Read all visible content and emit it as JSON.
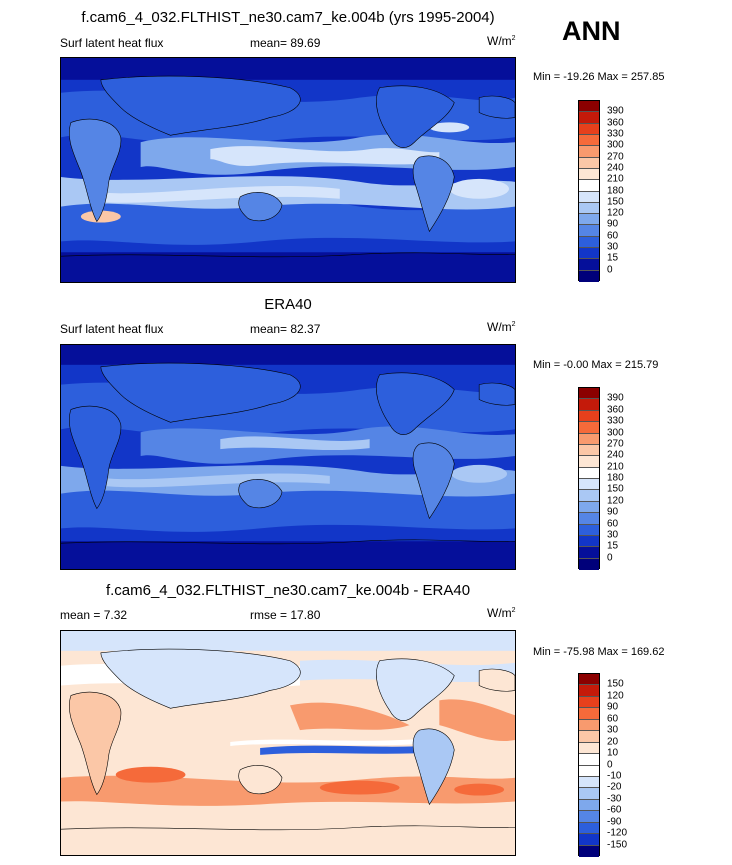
{
  "season": "ANN",
  "panels": [
    {
      "title": "f.cam6_4_032.FLTHIST_ne30.cam7_ke.004b (yrs 1995-2004)",
      "left_label": "Surf latent heat flux",
      "center_label": "mean=  89.69",
      "units": "W/m",
      "units_sup": "2",
      "minmax": "Min = -19.26 Max = 257.85",
      "colorbar_labels": [
        "390",
        "360",
        "330",
        "300",
        "270",
        "240",
        "210",
        "180",
        "150",
        "120",
        "90",
        "60",
        "30",
        "15",
        "0"
      ]
    },
    {
      "title": "ERA40",
      "left_label": "Surf latent heat flux",
      "center_label": "mean=  82.37",
      "units": "W/m",
      "units_sup": "2",
      "minmax": "Min =  -0.00 Max = 215.79",
      "colorbar_labels": [
        "390",
        "360",
        "330",
        "300",
        "270",
        "240",
        "210",
        "180",
        "150",
        "120",
        "90",
        "60",
        "30",
        "15",
        "0"
      ]
    },
    {
      "title": "f.cam6_4_032.FLTHIST_ne30.cam7_ke.004b - ERA40",
      "left_label": "mean =   7.32",
      "center_label": "rmse =  17.80",
      "units": "W/m",
      "units_sup": "2",
      "minmax": "Min = -75.98 Max = 169.62",
      "colorbar_labels": [
        "150",
        "120",
        "90",
        "60",
        "30",
        "20",
        "10",
        "0",
        "-10",
        "-20",
        "-30",
        "-60",
        "-90",
        "-120",
        "-150"
      ]
    }
  ],
  "colors": {
    "abs_scale": [
      "#8b0000",
      "#c41a0a",
      "#e6401c",
      "#f56a3a",
      "#f89a6e",
      "#fbc7a7",
      "#fde6d4",
      "#ffffff",
      "#d6e5fb",
      "#aac8f4",
      "#7ea8ec",
      "#5585e5",
      "#2d5fdc",
      "#1236c8",
      "#050f9a",
      "#00007a"
    ],
    "diff_scale": [
      "#8b0000",
      "#c41a0a",
      "#e6401c",
      "#f56a3a",
      "#f89a6e",
      "#fbc7a7",
      "#fde6d4",
      "#ffffff",
      "#ffffff",
      "#d6e5fb",
      "#aac8f4",
      "#7ea8ec",
      "#5585e5",
      "#2d5fdc",
      "#1236c8",
      "#00007a"
    ]
  }
}
